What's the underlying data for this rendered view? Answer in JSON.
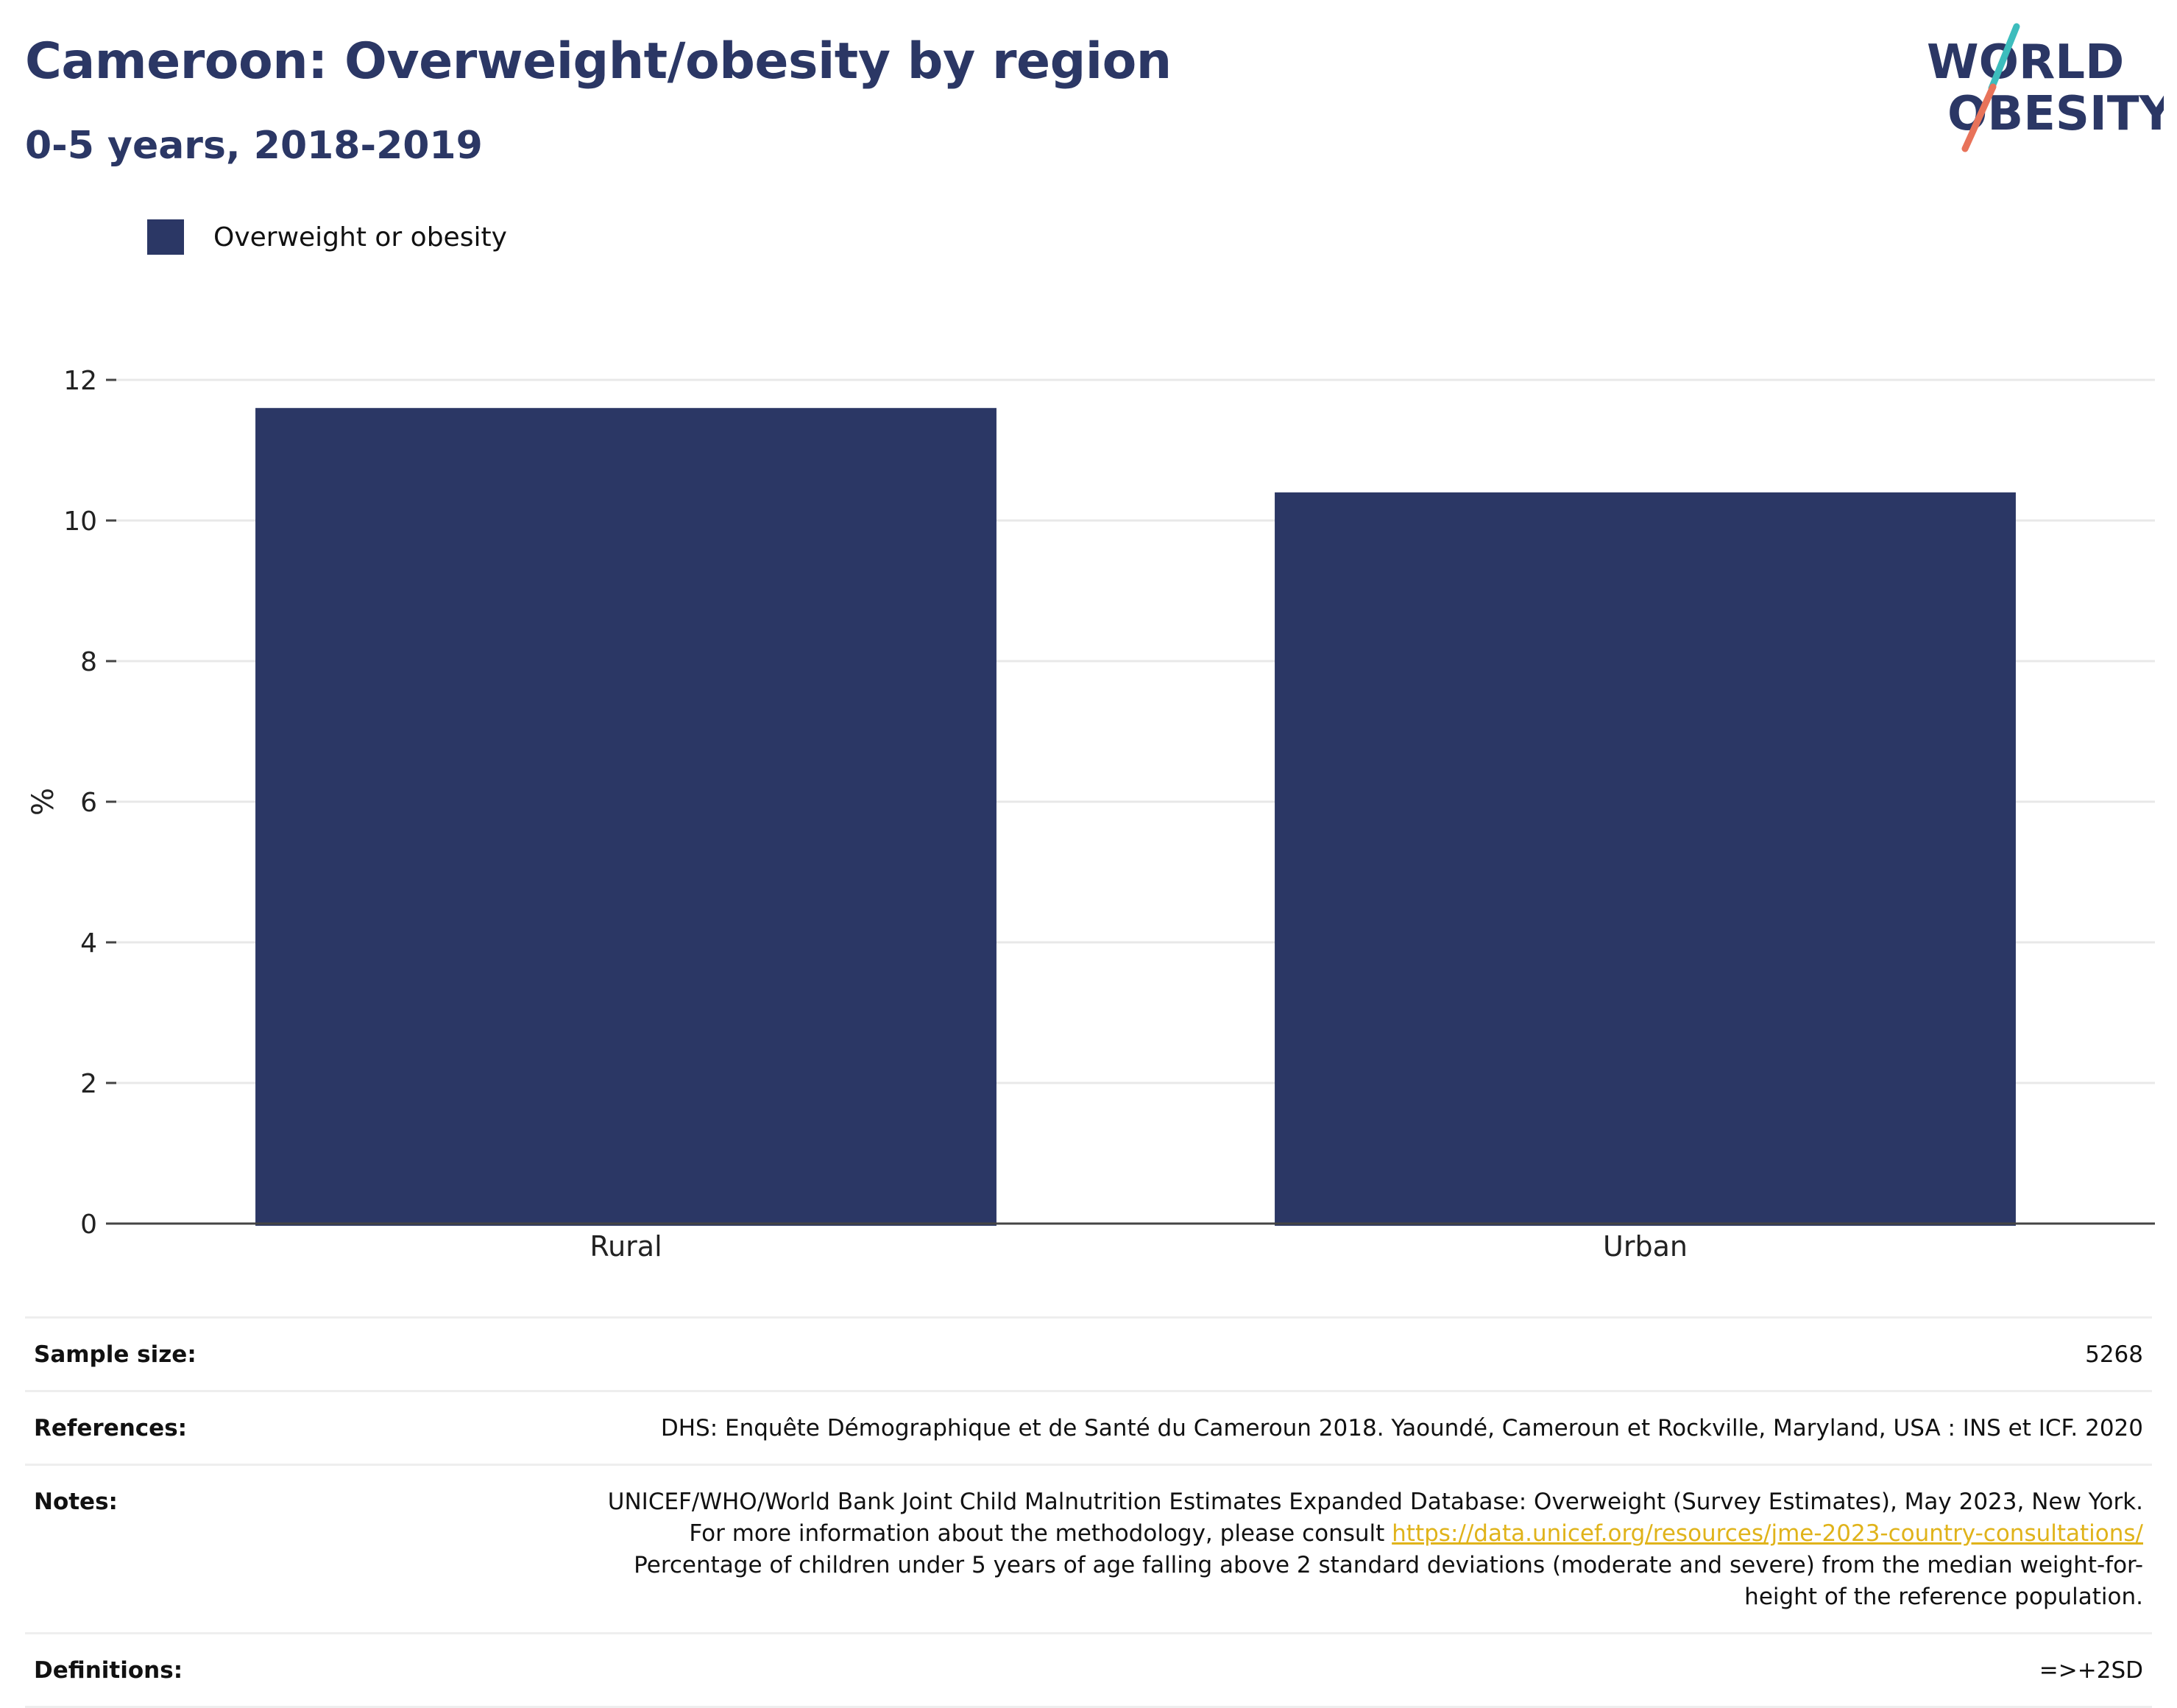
{
  "header": {
    "title": "Cameroon: Overweight/obesity by region",
    "subtitle": "0-5 years, 2018-2019"
  },
  "logo": {
    "line1": "WORLD",
    "line2": "OBESITY",
    "icon": "world-obesity-logo"
  },
  "colors": {
    "bar": "#2b3765",
    "title": "#2b3765",
    "logo_teal": "#3dbdbd",
    "logo_coral": "#e8735a",
    "link": "#e0b31a"
  },
  "chart_data": {
    "type": "bar",
    "categories": [
      "Rural",
      "Urban"
    ],
    "series": [
      {
        "name": "Overweight or obesity",
        "values": [
          11.6,
          10.4
        ]
      }
    ],
    "ylabel": "%",
    "xlabel": "",
    "ylim": [
      0,
      12
    ],
    "yticks": [
      0,
      2,
      4,
      6,
      8,
      10,
      12
    ],
    "grid": true,
    "legend": "top-left"
  },
  "meta": {
    "sample_size_label": "Sample size:",
    "sample_size_value": "5268",
    "references_label": "References:",
    "references_value": "DHS: Enquête Démographique et de Santé du Cameroun 2018. Yaoundé, Cameroun et Rockville, Maryland, USA : INS et ICF. 2020",
    "notes_label": "Notes:",
    "notes_text_1": "UNICEF/WHO/World Bank Joint Child Malnutrition Estimates Expanded Database: Overweight (Survey Estimates), May 2023, New York. For more information about the methodology, please consult ",
    "notes_link": "https://data.unicef.org/resources/jme-2023-country-consultations/",
    "notes_text_2": "Percentage of children under 5 years of age falling above 2 standard deviations (moderate and severe) from the median weight-for-height of the reference population.",
    "definitions_label": "Definitions:",
    "definitions_value": "=>+2SD"
  }
}
